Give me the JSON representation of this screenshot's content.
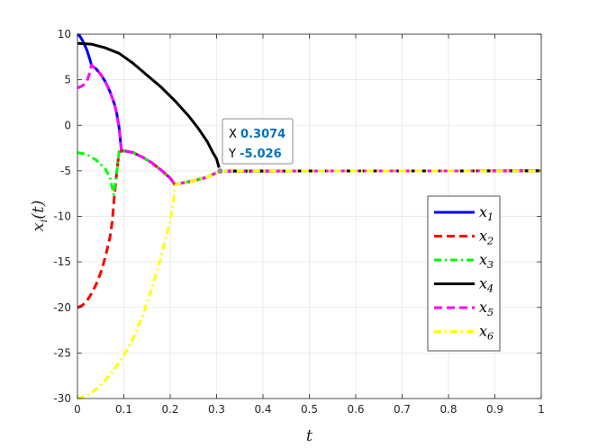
{
  "chart_data": {
    "type": "line",
    "xlabel_main": "t",
    "ylabel_main": "x",
    "ylabel_sub": "i",
    "ylabel_suffix": "(t)",
    "xlim": [
      0,
      1
    ],
    "ylim": [
      -30,
      10
    ],
    "grid": true,
    "legend_position": "right",
    "xticks": [
      "0",
      "0.1",
      "0.2",
      "0.3",
      "0.4",
      "0.5",
      "0.6",
      "0.7",
      "0.8",
      "0.9",
      "1"
    ],
    "yticks": [
      "-30",
      "-25",
      "-20",
      "-15",
      "-10",
      "-5",
      "0",
      "5",
      "10"
    ],
    "series": [
      {
        "name": "x",
        "sub": "1",
        "color": "#0000ff",
        "style": "solid",
        "points": [
          [
            0,
            10
          ],
          [
            0.005,
            9.8
          ],
          [
            0.012,
            9.2
          ],
          [
            0.02,
            8.3
          ],
          [
            0.027,
            7.2
          ],
          [
            0.03,
            6.6
          ],
          [
            0.04,
            6.2
          ],
          [
            0.05,
            5.6
          ],
          [
            0.06,
            4.8
          ],
          [
            0.07,
            3.7
          ],
          [
            0.08,
            2.3
          ],
          [
            0.085,
            1.2
          ],
          [
            0.09,
            -0.3
          ],
          [
            0.095,
            -2.8
          ],
          [
            0.1,
            -2.8
          ],
          [
            0.12,
            -3.0
          ],
          [
            0.14,
            -3.5
          ],
          [
            0.16,
            -4.1
          ],
          [
            0.18,
            -4.9
          ],
          [
            0.2,
            -5.8
          ],
          [
            0.21,
            -6.5
          ],
          [
            0.22,
            -6.4
          ],
          [
            0.25,
            -6.1
          ],
          [
            0.28,
            -5.7
          ],
          [
            0.3074,
            -5.026
          ],
          [
            1,
            -5.0
          ]
        ]
      },
      {
        "name": "x",
        "sub": "2",
        "color": "#ff0000",
        "style": "dashed",
        "points": [
          [
            0,
            -20
          ],
          [
            0.01,
            -19.8
          ],
          [
            0.02,
            -19.3
          ],
          [
            0.03,
            -18.5
          ],
          [
            0.04,
            -17.5
          ],
          [
            0.05,
            -16.2
          ],
          [
            0.06,
            -14.5
          ],
          [
            0.07,
            -12.3
          ],
          [
            0.075,
            -10.6
          ],
          [
            0.08,
            -7.6
          ],
          [
            0.085,
            -5.0
          ],
          [
            0.09,
            -2.9
          ],
          [
            0.1,
            -2.8
          ],
          [
            0.12,
            -3.0
          ],
          [
            0.14,
            -3.5
          ],
          [
            0.16,
            -4.1
          ],
          [
            0.18,
            -4.9
          ],
          [
            0.2,
            -5.8
          ],
          [
            0.21,
            -6.5
          ],
          [
            0.22,
            -6.4
          ],
          [
            0.25,
            -6.1
          ],
          [
            0.28,
            -5.7
          ],
          [
            0.3074,
            -5.026
          ],
          [
            1,
            -5.0
          ]
        ]
      },
      {
        "name": "x",
        "sub": "3",
        "color": "#00ff00",
        "style": "dashdot",
        "points": [
          [
            0,
            -3.0
          ],
          [
            0.02,
            -3.2
          ],
          [
            0.04,
            -3.8
          ],
          [
            0.06,
            -4.8
          ],
          [
            0.07,
            -5.7
          ],
          [
            0.078,
            -7.6
          ],
          [
            0.085,
            -5.0
          ],
          [
            0.09,
            -2.9
          ],
          [
            0.1,
            -2.8
          ],
          [
            0.12,
            -3.0
          ],
          [
            0.14,
            -3.5
          ],
          [
            0.16,
            -4.1
          ],
          [
            0.18,
            -4.9
          ],
          [
            0.2,
            -5.8
          ],
          [
            0.21,
            -6.5
          ],
          [
            0.22,
            -6.4
          ],
          [
            0.25,
            -6.1
          ],
          [
            0.28,
            -5.7
          ],
          [
            0.3074,
            -5.026
          ],
          [
            1,
            -5.0
          ]
        ]
      },
      {
        "name": "x",
        "sub": "4",
        "color": "#000000",
        "style": "solid",
        "points": [
          [
            0,
            9.0
          ],
          [
            0.03,
            8.9
          ],
          [
            0.06,
            8.5
          ],
          [
            0.09,
            7.9
          ],
          [
            0.12,
            6.8
          ],
          [
            0.15,
            5.5
          ],
          [
            0.18,
            4.2
          ],
          [
            0.21,
            2.7
          ],
          [
            0.24,
            1.0
          ],
          [
            0.26,
            -0.3
          ],
          [
            0.28,
            -1.8
          ],
          [
            0.29,
            -2.8
          ],
          [
            0.3,
            -3.7
          ],
          [
            0.3074,
            -5.026
          ],
          [
            1,
            -5.0
          ]
        ]
      },
      {
        "name": "x",
        "sub": "5",
        "color": "#ff00ff",
        "style": "dashed",
        "points": [
          [
            0,
            4.1
          ],
          [
            0.01,
            4.3
          ],
          [
            0.02,
            4.8
          ],
          [
            0.027,
            5.8
          ],
          [
            0.03,
            6.6
          ],
          [
            0.04,
            6.2
          ],
          [
            0.05,
            5.6
          ],
          [
            0.06,
            4.8
          ],
          [
            0.07,
            3.7
          ],
          [
            0.08,
            2.3
          ],
          [
            0.085,
            1.2
          ],
          [
            0.09,
            -0.3
          ],
          [
            0.095,
            -2.8
          ],
          [
            0.1,
            -2.8
          ],
          [
            0.12,
            -3.0
          ],
          [
            0.14,
            -3.5
          ],
          [
            0.16,
            -4.1
          ],
          [
            0.18,
            -4.9
          ],
          [
            0.2,
            -5.8
          ],
          [
            0.21,
            -6.5
          ],
          [
            0.22,
            -6.4
          ],
          [
            0.25,
            -6.1
          ],
          [
            0.28,
            -5.7
          ],
          [
            0.3074,
            -5.026
          ],
          [
            1,
            -5.0
          ]
        ]
      },
      {
        "name": "x",
        "sub": "6",
        "color": "#ffff00",
        "style": "dashdot",
        "points": [
          [
            0,
            -30
          ],
          [
            0.02,
            -29.7
          ],
          [
            0.04,
            -29.0
          ],
          [
            0.06,
            -28.0
          ],
          [
            0.08,
            -26.8
          ],
          [
            0.1,
            -25.3
          ],
          [
            0.12,
            -23.4
          ],
          [
            0.14,
            -21.0
          ],
          [
            0.16,
            -18.0
          ],
          [
            0.18,
            -14.5
          ],
          [
            0.2,
            -10.5
          ],
          [
            0.205,
            -9.0
          ],
          [
            0.21,
            -7.0
          ],
          [
            0.212,
            -6.5
          ],
          [
            0.22,
            -6.4
          ],
          [
            0.25,
            -6.1
          ],
          [
            0.28,
            -5.7
          ],
          [
            0.3074,
            -5.026
          ],
          [
            1,
            -5.0
          ]
        ]
      }
    ],
    "datatip": {
      "x_label": "X",
      "x_value": "0.3074",
      "y_label": "Y",
      "y_value": "-5.026",
      "at": [
        0.3074,
        -5.026
      ]
    }
  }
}
